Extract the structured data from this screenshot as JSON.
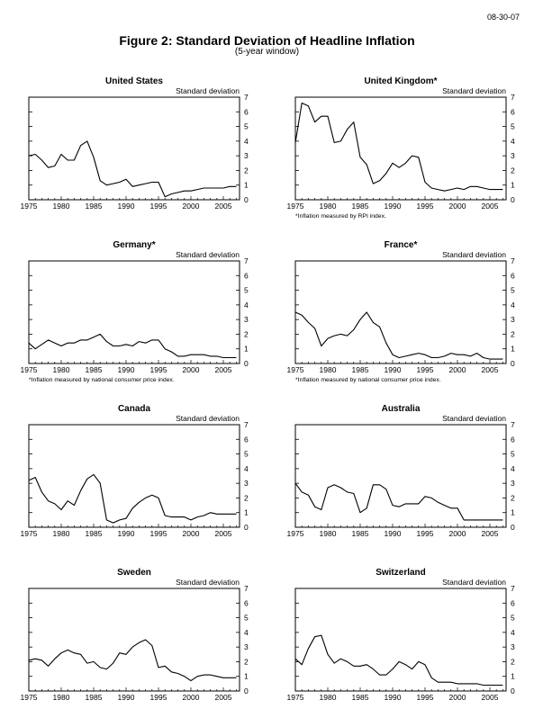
{
  "date": "08-30-07",
  "figure_title": "Figure 2: Standard Deviation of Headline Inflation",
  "figure_subtitle": "(5-year window)",
  "chart_data": [
    {
      "type": "line",
      "title": "United States",
      "ylabel": "Standard deviation",
      "footnote": "",
      "xlim": [
        1975,
        2007.5
      ],
      "ylim": [
        0,
        7
      ],
      "xticks": [
        1975,
        1980,
        1985,
        1990,
        1995,
        2000,
        2005
      ],
      "yticks": [
        0,
        1,
        2,
        3,
        4,
        5,
        6,
        7
      ],
      "x": [
        1975,
        1976,
        1977,
        1978,
        1979,
        1980,
        1981,
        1982,
        1983,
        1984,
        1985,
        1986,
        1987,
        1988,
        1989,
        1990,
        1991,
        1992,
        1993,
        1994,
        1995,
        1996,
        1997,
        1998,
        1999,
        2000,
        2001,
        2002,
        2003,
        2004,
        2005,
        2006,
        2007
      ],
      "values": [
        3.0,
        3.1,
        2.7,
        2.2,
        2.3,
        3.1,
        2.7,
        2.7,
        3.7,
        4.0,
        2.9,
        1.3,
        1.0,
        1.1,
        1.2,
        1.4,
        0.9,
        1.0,
        1.1,
        1.2,
        1.2,
        0.2,
        0.4,
        0.5,
        0.6,
        0.6,
        0.7,
        0.8,
        0.8,
        0.8,
        0.8,
        0.9,
        0.9
      ]
    },
    {
      "type": "line",
      "title": "United Kingdom*",
      "ylabel": "Standard deviation",
      "footnote": "*Inflation measured by RPI index.",
      "xlim": [
        1975,
        2007.5
      ],
      "ylim": [
        0,
        7
      ],
      "xticks": [
        1975,
        1980,
        1985,
        1990,
        1995,
        2000,
        2005
      ],
      "yticks": [
        0,
        1,
        2,
        3,
        4,
        5,
        6,
        7
      ],
      "x": [
        1975,
        1976,
        1977,
        1978,
        1979,
        1980,
        1981,
        1982,
        1983,
        1984,
        1985,
        1986,
        1987,
        1988,
        1989,
        1990,
        1991,
        1992,
        1993,
        1994,
        1995,
        1996,
        1997,
        1998,
        1999,
        2000,
        2001,
        2002,
        2003,
        2004,
        2005,
        2006,
        2007
      ],
      "values": [
        3.9,
        6.6,
        6.4,
        5.3,
        5.7,
        5.7,
        3.9,
        4.0,
        4.8,
        5.3,
        2.9,
        2.4,
        1.1,
        1.3,
        1.8,
        2.5,
        2.2,
        2.5,
        3.0,
        2.9,
        1.2,
        0.8,
        0.7,
        0.6,
        0.7,
        0.8,
        0.7,
        0.9,
        0.9,
        0.8,
        0.7,
        0.7,
        0.7
      ]
    },
    {
      "type": "line",
      "title": "Germany*",
      "ylabel": "Standard deviation",
      "footnote": "*Inflation measured by national consumer price index.",
      "xlim": [
        1975,
        2007.5
      ],
      "ylim": [
        0,
        7
      ],
      "xticks": [
        1975,
        1980,
        1985,
        1990,
        1995,
        2000,
        2005
      ],
      "yticks": [
        0,
        1,
        2,
        3,
        4,
        5,
        6,
        7
      ],
      "x": [
        1975,
        1976,
        1977,
        1978,
        1979,
        1980,
        1981,
        1982,
        1983,
        1984,
        1985,
        1986,
        1987,
        1988,
        1989,
        1990,
        1991,
        1992,
        1993,
        1994,
        1995,
        1996,
        1997,
        1998,
        1999,
        2000,
        2001,
        2002,
        2003,
        2004,
        2005,
        2006,
        2007
      ],
      "values": [
        1.4,
        1.0,
        1.3,
        1.6,
        1.4,
        1.2,
        1.4,
        1.4,
        1.6,
        1.6,
        1.8,
        2.0,
        1.5,
        1.2,
        1.2,
        1.3,
        1.2,
        1.5,
        1.4,
        1.6,
        1.6,
        1.0,
        0.8,
        0.5,
        0.5,
        0.6,
        0.6,
        0.6,
        0.5,
        0.5,
        0.4,
        0.4,
        0.4
      ]
    },
    {
      "type": "line",
      "title": "France*",
      "ylabel": "Standard deviation",
      "footnote": "*Inflation measured by national consumer price index.",
      "xlim": [
        1975,
        2007.5
      ],
      "ylim": [
        0,
        7
      ],
      "xticks": [
        1975,
        1980,
        1985,
        1990,
        1995,
        2000,
        2005
      ],
      "yticks": [
        0,
        1,
        2,
        3,
        4,
        5,
        6,
        7
      ],
      "x": [
        1975,
        1976,
        1977,
        1978,
        1979,
        1980,
        1981,
        1982,
        1983,
        1984,
        1985,
        1986,
        1987,
        1988,
        1989,
        1990,
        1991,
        1992,
        1993,
        1994,
        1995,
        1996,
        1997,
        1998,
        1999,
        2000,
        2001,
        2002,
        2003,
        2004,
        2005,
        2006,
        2007
      ],
      "values": [
        3.5,
        3.3,
        2.8,
        2.4,
        1.2,
        1.7,
        1.9,
        2.0,
        1.9,
        2.3,
        3.0,
        3.5,
        2.8,
        2.5,
        1.4,
        0.6,
        0.4,
        0.5,
        0.6,
        0.7,
        0.6,
        0.4,
        0.4,
        0.5,
        0.7,
        0.6,
        0.6,
        0.5,
        0.7,
        0.4,
        0.3,
        0.3,
        0.3
      ]
    },
    {
      "type": "line",
      "title": "Canada",
      "ylabel": "Standard deviation",
      "footnote": "",
      "xlim": [
        1975,
        2007.5
      ],
      "ylim": [
        0,
        7
      ],
      "xticks": [
        1975,
        1980,
        1985,
        1990,
        1995,
        2000,
        2005
      ],
      "yticks": [
        0,
        1,
        2,
        3,
        4,
        5,
        6,
        7
      ],
      "x": [
        1975,
        1976,
        1977,
        1978,
        1979,
        1980,
        1981,
        1982,
        1983,
        1984,
        1985,
        1986,
        1987,
        1988,
        1989,
        1990,
        1991,
        1992,
        1993,
        1994,
        1995,
        1996,
        1997,
        1998,
        1999,
        2000,
        2001,
        2002,
        2003,
        2004,
        2005,
        2006,
        2007
      ],
      "values": [
        3.2,
        3.4,
        2.4,
        1.8,
        1.6,
        1.2,
        1.8,
        1.5,
        2.5,
        3.3,
        3.6,
        3.0,
        0.5,
        0.3,
        0.5,
        0.6,
        1.3,
        1.7,
        2.0,
        2.2,
        2.0,
        0.8,
        0.7,
        0.7,
        0.7,
        0.5,
        0.7,
        0.8,
        1.0,
        0.9,
        0.9,
        0.9,
        0.9
      ]
    },
    {
      "type": "line",
      "title": "Australia",
      "ylabel": "Standard deviation",
      "footnote": "",
      "xlim": [
        1975,
        2007.5
      ],
      "ylim": [
        0,
        7
      ],
      "xticks": [
        1975,
        1980,
        1985,
        1990,
        1995,
        2000,
        2005
      ],
      "yticks": [
        0,
        1,
        2,
        3,
        4,
        5,
        6,
        7
      ],
      "x": [
        1975,
        1976,
        1977,
        1978,
        1979,
        1980,
        1981,
        1982,
        1983,
        1984,
        1985,
        1986,
        1987,
        1988,
        1989,
        1990,
        1991,
        1992,
        1993,
        1994,
        1995,
        1996,
        1997,
        1998,
        1999,
        2000,
        2001,
        2002,
        2003,
        2004,
        2005,
        2006,
        2007
      ],
      "values": [
        3.0,
        2.4,
        2.2,
        1.4,
        1.2,
        2.7,
        2.9,
        2.7,
        2.4,
        2.3,
        1.0,
        1.3,
        2.9,
        2.9,
        2.6,
        1.5,
        1.4,
        1.6,
        1.6,
        1.6,
        2.1,
        2.0,
        1.7,
        1.5,
        1.3,
        1.3,
        0.5,
        0.5,
        0.5,
        0.5,
        0.5,
        0.5,
        0.5
      ]
    },
    {
      "type": "line",
      "title": "Sweden",
      "ylabel": "Standard deviation",
      "footnote": "",
      "xlim": [
        1975,
        2007.5
      ],
      "ylim": [
        0,
        7
      ],
      "xticks": [
        1975,
        1980,
        1985,
        1990,
        1995,
        2000,
        2005
      ],
      "yticks": [
        0,
        1,
        2,
        3,
        4,
        5,
        6,
        7
      ],
      "x": [
        1975,
        1976,
        1977,
        1978,
        1979,
        1980,
        1981,
        1982,
        1983,
        1984,
        1985,
        1986,
        1987,
        1988,
        1989,
        1990,
        1991,
        1992,
        1993,
        1994,
        1995,
        1996,
        1997,
        1998,
        1999,
        2000,
        2001,
        2002,
        2003,
        2004,
        2005,
        2006,
        2007
      ],
      "values": [
        2.1,
        2.2,
        2.1,
        1.7,
        2.2,
        2.6,
        2.8,
        2.6,
        2.5,
        1.9,
        2.0,
        1.6,
        1.5,
        1.9,
        2.6,
        2.5,
        3.0,
        3.3,
        3.5,
        3.1,
        1.6,
        1.7,
        1.3,
        1.2,
        1.0,
        0.7,
        1.0,
        1.1,
        1.1,
        1.0,
        0.9,
        0.9,
        0.9
      ]
    },
    {
      "type": "line",
      "title": "Switzerland",
      "ylabel": "Standard deviation",
      "footnote": "",
      "xlim": [
        1975,
        2007.5
      ],
      "ylim": [
        0,
        7
      ],
      "xticks": [
        1975,
        1980,
        1985,
        1990,
        1995,
        2000,
        2005
      ],
      "yticks": [
        0,
        1,
        2,
        3,
        4,
        5,
        6,
        7
      ],
      "x": [
        1975,
        1976,
        1977,
        1978,
        1979,
        1980,
        1981,
        1982,
        1983,
        1984,
        1985,
        1986,
        1987,
        1988,
        1989,
        1990,
        1991,
        1992,
        1993,
        1994,
        1995,
        1996,
        1997,
        1998,
        1999,
        2000,
        2001,
        2002,
        2003,
        2004,
        2005,
        2006,
        2007
      ],
      "values": [
        2.2,
        1.8,
        2.9,
        3.7,
        3.8,
        2.5,
        1.9,
        2.2,
        2.0,
        1.7,
        1.7,
        1.8,
        1.5,
        1.1,
        1.1,
        1.5,
        2.0,
        1.8,
        1.5,
        2.0,
        1.8,
        0.9,
        0.6,
        0.6,
        0.6,
        0.5,
        0.5,
        0.5,
        0.5,
        0.4,
        0.4,
        0.4,
        0.4
      ]
    }
  ]
}
